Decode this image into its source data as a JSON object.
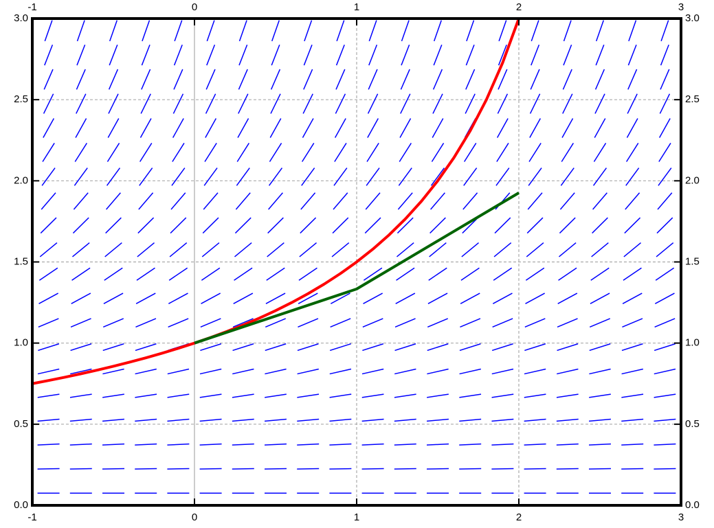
{
  "chart_data": {
    "type": "slope-field",
    "xlim": [
      -1,
      3
    ],
    "ylim": [
      0,
      3
    ],
    "xticks": [
      -1,
      0,
      1,
      2,
      3
    ],
    "yticks": [
      {
        "value": 0,
        "label": "0.0"
      },
      0.5,
      {
        "value": 1,
        "label": "1.0"
      },
      1.5,
      {
        "value": 2,
        "label": "2.0"
      },
      2.5,
      {
        "value": 3,
        "label": "3.0"
      }
    ],
    "grid": true,
    "field": {
      "color": "#0000ff",
      "x": [
        -0.9,
        -0.7,
        -0.5,
        -0.3,
        -0.1,
        0.1,
        0.3,
        0.5,
        0.7,
        0.9,
        1.1,
        1.3,
        1.5,
        1.7,
        1.9,
        2.1,
        2.3,
        2.5,
        2.7,
        2.9
      ],
      "y": [
        0.075,
        0.225,
        0.375,
        0.525,
        0.675,
        0.825,
        0.975,
        1.125,
        1.275,
        1.425,
        1.575,
        1.725,
        1.875,
        2.025,
        2.175,
        2.325,
        2.475,
        2.625,
        2.775,
        2.925
      ],
      "slopes": [
        0.0019,
        0.0169,
        0.0469,
        0.0919,
        0.1519,
        0.2269,
        0.3169,
        0.4219,
        0.5419,
        0.6769,
        0.8269,
        0.9919,
        1.1719,
        1.3669,
        1.5769,
        1.8019,
        2.0419,
        2.2969,
        2.5669,
        2.8519
      ]
    },
    "series": [
      {
        "color": "#ff0000",
        "x": [
          -1,
          -0.9,
          -0.8,
          -0.7,
          -0.6,
          -0.5,
          -0.4,
          -0.3,
          -0.2,
          -0.1,
          0,
          0.1,
          0.2,
          0.3,
          0.4,
          0.5,
          0.6,
          0.7,
          0.8,
          0.9,
          1,
          1.1,
          1.2,
          1.3,
          1.4,
          1.5,
          1.6,
          1.7,
          1.8,
          1.9,
          2
        ],
        "values": [
          0.75,
          0.7692,
          0.7895,
          0.8108,
          0.8333,
          0.8571,
          0.8824,
          0.9091,
          0.9375,
          0.9677,
          1,
          1.0345,
          1.0714,
          1.1111,
          1.1538,
          1.2,
          1.25,
          1.3043,
          1.3636,
          1.4286,
          1.5,
          1.5789,
          1.6667,
          1.7647,
          1.875,
          2,
          2.1429,
          2.3077,
          2.5,
          2.7273,
          3
        ]
      },
      {
        "color": "#006400",
        "x": [
          0,
          1,
          2
        ],
        "values": [
          1,
          1.3333,
          1.9259
        ]
      }
    ]
  }
}
